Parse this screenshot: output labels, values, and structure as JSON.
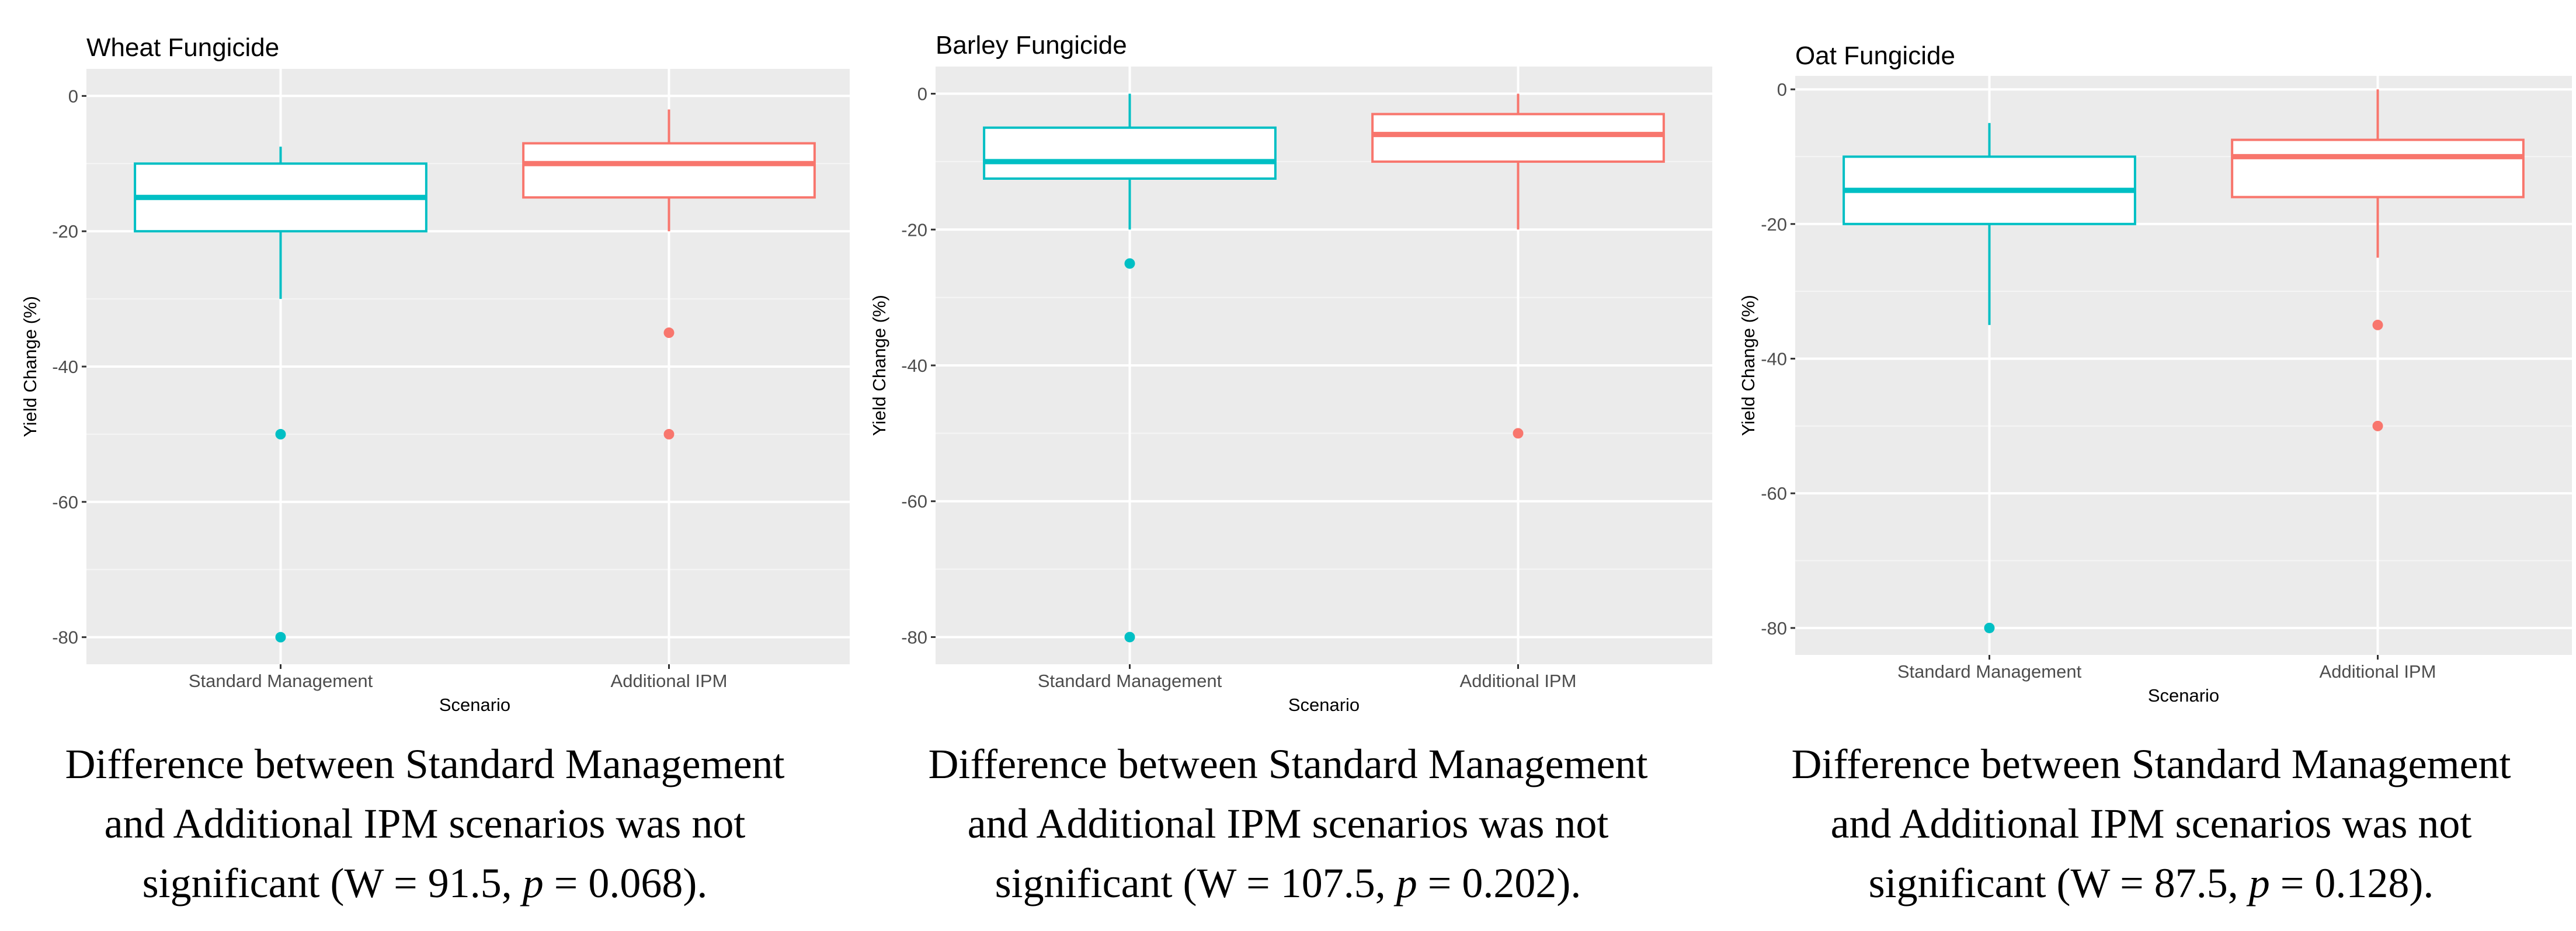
{
  "chart_data": [
    {
      "type": "box",
      "title": "Wheat Fungicide",
      "xlabel": "Scenario",
      "ylabel": "Yield Change (%)",
      "ylim": [
        -84,
        4
      ],
      "yticks": [
        0,
        -20,
        -40,
        -60,
        -80
      ],
      "categories": [
        "Standard Management",
        "Additional IPM"
      ],
      "boxes": [
        {
          "name": "Standard Management",
          "color": "#00BFC4",
          "whisker_low": -30,
          "q1": -20,
          "median": -15,
          "q3": -10,
          "whisker_high": -7.5,
          "outliers": [
            -50,
            -80
          ]
        },
        {
          "name": "Additional IPM",
          "color": "#F8766D",
          "whisker_low": -20,
          "q1": -15,
          "median": -10,
          "q3": -7,
          "whisker_high": -2,
          "outliers": [
            -35,
            -50
          ]
        }
      ],
      "caption": {
        "line1": "Difference between Standard Management",
        "line2": "and Additional IPM scenarios was not",
        "line3_pre": "significant (W = 91.5,",
        "p": "p",
        "line3_post": "= 0.068)."
      }
    },
    {
      "type": "box",
      "title": "Barley Fungicide",
      "xlabel": "Scenario",
      "ylabel": "Yield Change (%)",
      "ylim": [
        -84,
        4
      ],
      "yticks": [
        0,
        -20,
        -40,
        -60,
        -80
      ],
      "categories": [
        "Standard Management",
        "Additional IPM"
      ],
      "boxes": [
        {
          "name": "Standard Management",
          "color": "#00BFC4",
          "whisker_low": -20,
          "q1": -12.5,
          "median": -10,
          "q3": -5,
          "whisker_high": 0,
          "outliers": [
            -25,
            -80
          ]
        },
        {
          "name": "Additional IPM",
          "color": "#F8766D",
          "whisker_low": -20,
          "q1": -10,
          "median": -6,
          "q3": -3,
          "whisker_high": 0,
          "outliers": [
            -50
          ]
        }
      ],
      "caption": {
        "line1": "Difference between Standard Management",
        "line2": "and Additional IPM scenarios was not",
        "line3_pre": "significant (W = 107.5,",
        "p": "p",
        "line3_post": "= 0.202)."
      }
    },
    {
      "type": "box",
      "title": "Oat Fungicide",
      "xlabel": "Scenario",
      "ylabel": "Yield Change (%)",
      "ylim": [
        -84,
        2
      ],
      "yticks": [
        0,
        -20,
        -40,
        -60,
        -80
      ],
      "categories": [
        "Standard Management",
        "Additional IPM"
      ],
      "boxes": [
        {
          "name": "Standard Management",
          "color": "#00BFC4",
          "whisker_low": -35,
          "q1": -20,
          "median": -15,
          "q3": -10,
          "whisker_high": -5,
          "outliers": [
            -80
          ]
        },
        {
          "name": "Additional IPM",
          "color": "#F8766D",
          "whisker_low": -25,
          "q1": -16,
          "median": -10,
          "q3": -7.5,
          "whisker_high": 0,
          "outliers": [
            -35,
            -50
          ]
        }
      ],
      "caption": {
        "line1": "Difference between Standard Management",
        "line2": "and Additional IPM scenarios was not",
        "line3_pre": "significant (W = 87.5,",
        "p": "p",
        "line3_post": "= 0.128)."
      }
    }
  ]
}
